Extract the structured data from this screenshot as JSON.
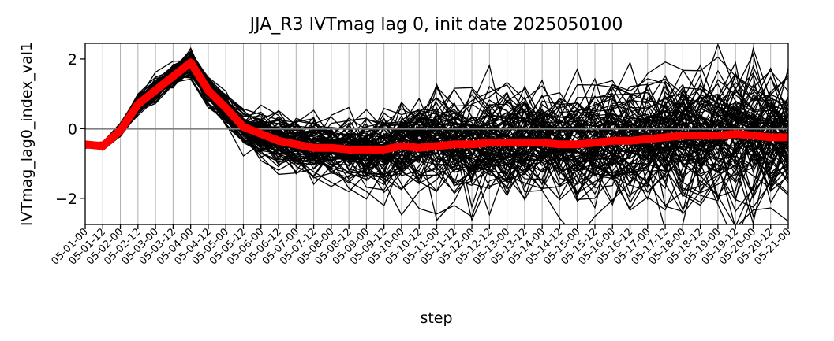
{
  "chart_data": {
    "type": "line",
    "title": "JJA_R3 IVTmag lag 0, init date 2025050100",
    "xlabel": "step",
    "ylabel": "IVTmag_lag0_index_val1",
    "ylim": [
      -2.75,
      2.45
    ],
    "yticks": [
      -2,
      0,
      2
    ],
    "ytick_labels": [
      "−2",
      "0",
      "2"
    ],
    "grid": "vertical",
    "x": [
      "05-01-00",
      "05-01-12",
      "05-02-00",
      "05-02-12",
      "05-03-00",
      "05-03-12",
      "05-04-00",
      "05-04-12",
      "05-05-00",
      "05-05-12",
      "05-06-00",
      "05-06-12",
      "05-07-00",
      "05-07-12",
      "05-08-00",
      "05-08-12",
      "05-09-00",
      "05-09-12",
      "05-10-00",
      "05-10-12",
      "05-11-00",
      "05-11-12",
      "05-12-00",
      "05-12-12",
      "05-13-00",
      "05-13-12",
      "05-14-00",
      "05-14-12",
      "05-15-00",
      "05-15-12",
      "05-16-00",
      "05-16-12",
      "05-17-00",
      "05-17-12",
      "05-18-00",
      "05-18-12",
      "05-19-00",
      "05-19-12",
      "05-20-00",
      "05-20-12",
      "05-21-00"
    ],
    "reference_line": {
      "y": 0,
      "color": "#808080"
    },
    "member_color": "#000000",
    "mean_color": "#ff0000",
    "mean_series": {
      "values": [
        -0.45,
        -0.5,
        -0.05,
        0.7,
        1.1,
        1.5,
        1.9,
        1.1,
        0.6,
        0.05,
        -0.15,
        -0.35,
        -0.45,
        -0.55,
        -0.55,
        -0.6,
        -0.6,
        -0.6,
        -0.5,
        -0.55,
        -0.5,
        -0.45,
        -0.45,
        -0.4,
        -0.4,
        -0.4,
        -0.4,
        -0.45,
        -0.45,
        -0.4,
        -0.35,
        -0.35,
        -0.3,
        -0.25,
        -0.2,
        -0.2,
        -0.2,
        -0.15,
        -0.2,
        -0.25,
        -0.25
      ]
    },
    "member_spread": {
      "mean": [
        -0.45,
        -0.5,
        -0.05,
        0.7,
        1.1,
        1.5,
        1.9,
        1.1,
        0.6,
        0.05,
        -0.15,
        -0.35,
        -0.45,
        -0.55,
        -0.55,
        -0.6,
        -0.6,
        -0.6,
        -0.5,
        -0.55,
        -0.5,
        -0.45,
        -0.45,
        -0.4,
        -0.4,
        -0.4,
        -0.4,
        -0.45,
        -0.45,
        -0.4,
        -0.35,
        -0.35,
        -0.3,
        -0.25,
        -0.2,
        -0.2,
        -0.2,
        -0.15,
        -0.2,
        -0.25,
        -0.25
      ],
      "sd": [
        0.04,
        0.05,
        0.08,
        0.15,
        0.18,
        0.18,
        0.18,
        0.18,
        0.2,
        0.22,
        0.28,
        0.32,
        0.38,
        0.4,
        0.42,
        0.45,
        0.5,
        0.55,
        0.6,
        0.62,
        0.65,
        0.65,
        0.7,
        0.7,
        0.72,
        0.72,
        0.72,
        0.72,
        0.72,
        0.75,
        0.78,
        0.8,
        0.8,
        0.8,
        0.82,
        0.82,
        0.85,
        0.85,
        0.9,
        0.9,
        0.9
      ],
      "member_count": 100
    }
  }
}
